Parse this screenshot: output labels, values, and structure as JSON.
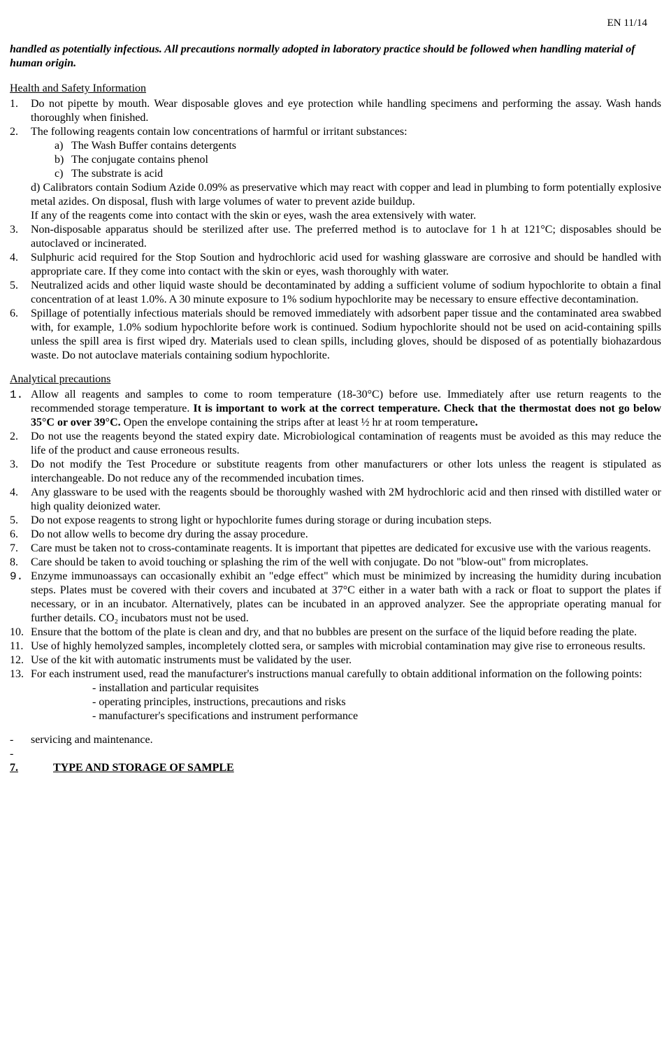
{
  "page_header": "EN  11/14",
  "intro": "handled as potentially infectious. All precautions normally adopted in laboratory practice should be followed when handling material of human origin.",
  "hsi_heading": "Health and Safety Information",
  "hsi": {
    "i1": {
      "n": "1.",
      "t": "Do not pipette by mouth. Wear disposable gloves and eye protection while handling specimens and performing the assay. Wash hands thoroughly when finished."
    },
    "i2": {
      "n": "2.",
      "t": "The following reagents contain low concentrations of harmful or irritant substances:",
      "a": {
        "m": "a)",
        "t": "The Wash Buffer contains detergents"
      },
      "b": {
        "m": "b)",
        "t": "The conjugate contains phenol"
      },
      "c": {
        "m": "c)",
        "t": "The substrate is acid"
      },
      "d": "d) Calibrators contain Sodium Azide 0.09% as preservative which may react with copper and lead in plumbing to form potentially explosive metal azides. On disposal, flush with large volumes of water to prevent azide buildup.",
      "e": "If any of the reagents come into contact with the skin or eyes, wash the area extensively with water."
    },
    "i3": {
      "n": "3.",
      "t": "Non-disposable apparatus should be sterilized after use. The preferred method is to autoclave for 1 h at 121°C; disposables should be autoclaved or incinerated."
    },
    "i4": {
      "n": "4.",
      "t": "Sulphuric acid required for the Stop Soution and hydrochloric acid used for washing glassware are corrosive and should be handled with appropriate care. If they come into contact with the skin or eyes, wash thoroughly with water."
    },
    "i5": {
      "n": "5.",
      "t": "Neutralized acids and other liquid waste should be decontaminated by adding a sufficient volume of sodium hypochlorite to obtain a final concentration of at least 1.0%. A 30 minute exposure to 1% sodium hypochlorite may be necessary to ensure effective decontamination."
    },
    "i6": {
      "n": "6.",
      "t": "Spillage of potentially infectious materials  should be removed immediately with adsorbent paper tissue and the contaminated area swabbed with, for example, 1.0% sodium hypochlorite before work is continued. Sodium hypochlorite should not be used on acid-containing spills unless the spill area is first wiped dry. Materials used to clean spills, including gloves, should be disposed of as potentially biohazardous waste. Do not autoclave materials containing sodium hypochlorite."
    }
  },
  "ap_heading": "Analytical precautions",
  "ap": {
    "i1": {
      "n": "1.",
      "t1": "Allow all reagents and samples to come to room temperature (18-30°C) before use. Immediately after use return reagents to the recommended storage temperature. ",
      "b": "It is important to work at the correct temperature. Check that the thermostat does not go below 35°C or over 39°C.",
      "t2": " Open the envelope containing the strips after at least ½ hr at room temperature"
    },
    "i2": {
      "n": "2.",
      "t": "Do not use the reagents beyond the stated expiry date. Microbiological contamination of reagents must be avoided as this may reduce the life of the product and cause erroneous results."
    },
    "i3": {
      "n": "3.",
      "t": "Do not modify the Test Procedure or substitute reagents from other manufacturers or other lots unless the reagent is stipulated as interchangeable. Do not reduce any of the recommended incubation times."
    },
    "i4": {
      "n": "4.",
      "t": "Any glassware to be used with the reagents sbould be thoroughly washed with 2M hydrochloric acid and then rinsed with distilled water or high quality deionized water."
    },
    "i5": {
      "n": "5.",
      "t": "Do not expose reagents to strong light or hypochlorite fumes during storage or during incubation steps."
    },
    "i6": {
      "n": "6.",
      "t": "Do not allow wells to become dry during the assay procedure."
    },
    "i7": {
      "n": "7.",
      "t": "Care must be taken not to cross-contaminate reagents. It is important that pipettes are dedicated for excusive use with the various reagents."
    },
    "i8": {
      "n": "8.",
      "t": "Care should be taken to avoid touching or splashing the rim of the well with conjugate. Do not \"blow-out\" from microplates."
    },
    "i9": {
      "n": "9.",
      "t": "Enzyme immunoassays can occasionally exhibit an \"edge effect\" which must be minimized by increasing the humidity during incubation steps. Plates must be covered with their covers and incubated at 37°C either in a water bath with a rack or float to support the plates if necessary, or in an incubator. Alternatively, plates can be incubated in an approved analyzer. See the appropriate operating manual for further details. CO₂ incubators must not be used."
    },
    "i10": {
      "n": "10.",
      "t": "Ensure that the bottom of the plate is clean and dry, and that no bubbles are present on the surface of the liquid before reading the plate."
    },
    "i11": {
      "n": "11.",
      "t": "Use of highly hemolyzed samples, incompletely clotted sera, or samples with microbial contamination may give rise to erroneous results."
    },
    "i12": {
      "n": "12.",
      "t": "Use of the kit with automatic instruments must be validated by the user."
    },
    "i13": {
      "n": "13.",
      "t": "For each instrument used, read the manufacturer's instructions manual carefully to obtain additional information on the following points:",
      "d1": "- installation and particular requisites",
      "d2": "- operating principles, instructions, precautions and risks",
      "d3": "- manufacturer's specifications and instrument performance"
    },
    "svc": {
      "d": "-",
      "t": "servicing and maintenance."
    },
    "dash": "-",
    "sev": {
      "n": "7.",
      "t": "TYPE AND STORAGE OF SAMPLE"
    }
  }
}
